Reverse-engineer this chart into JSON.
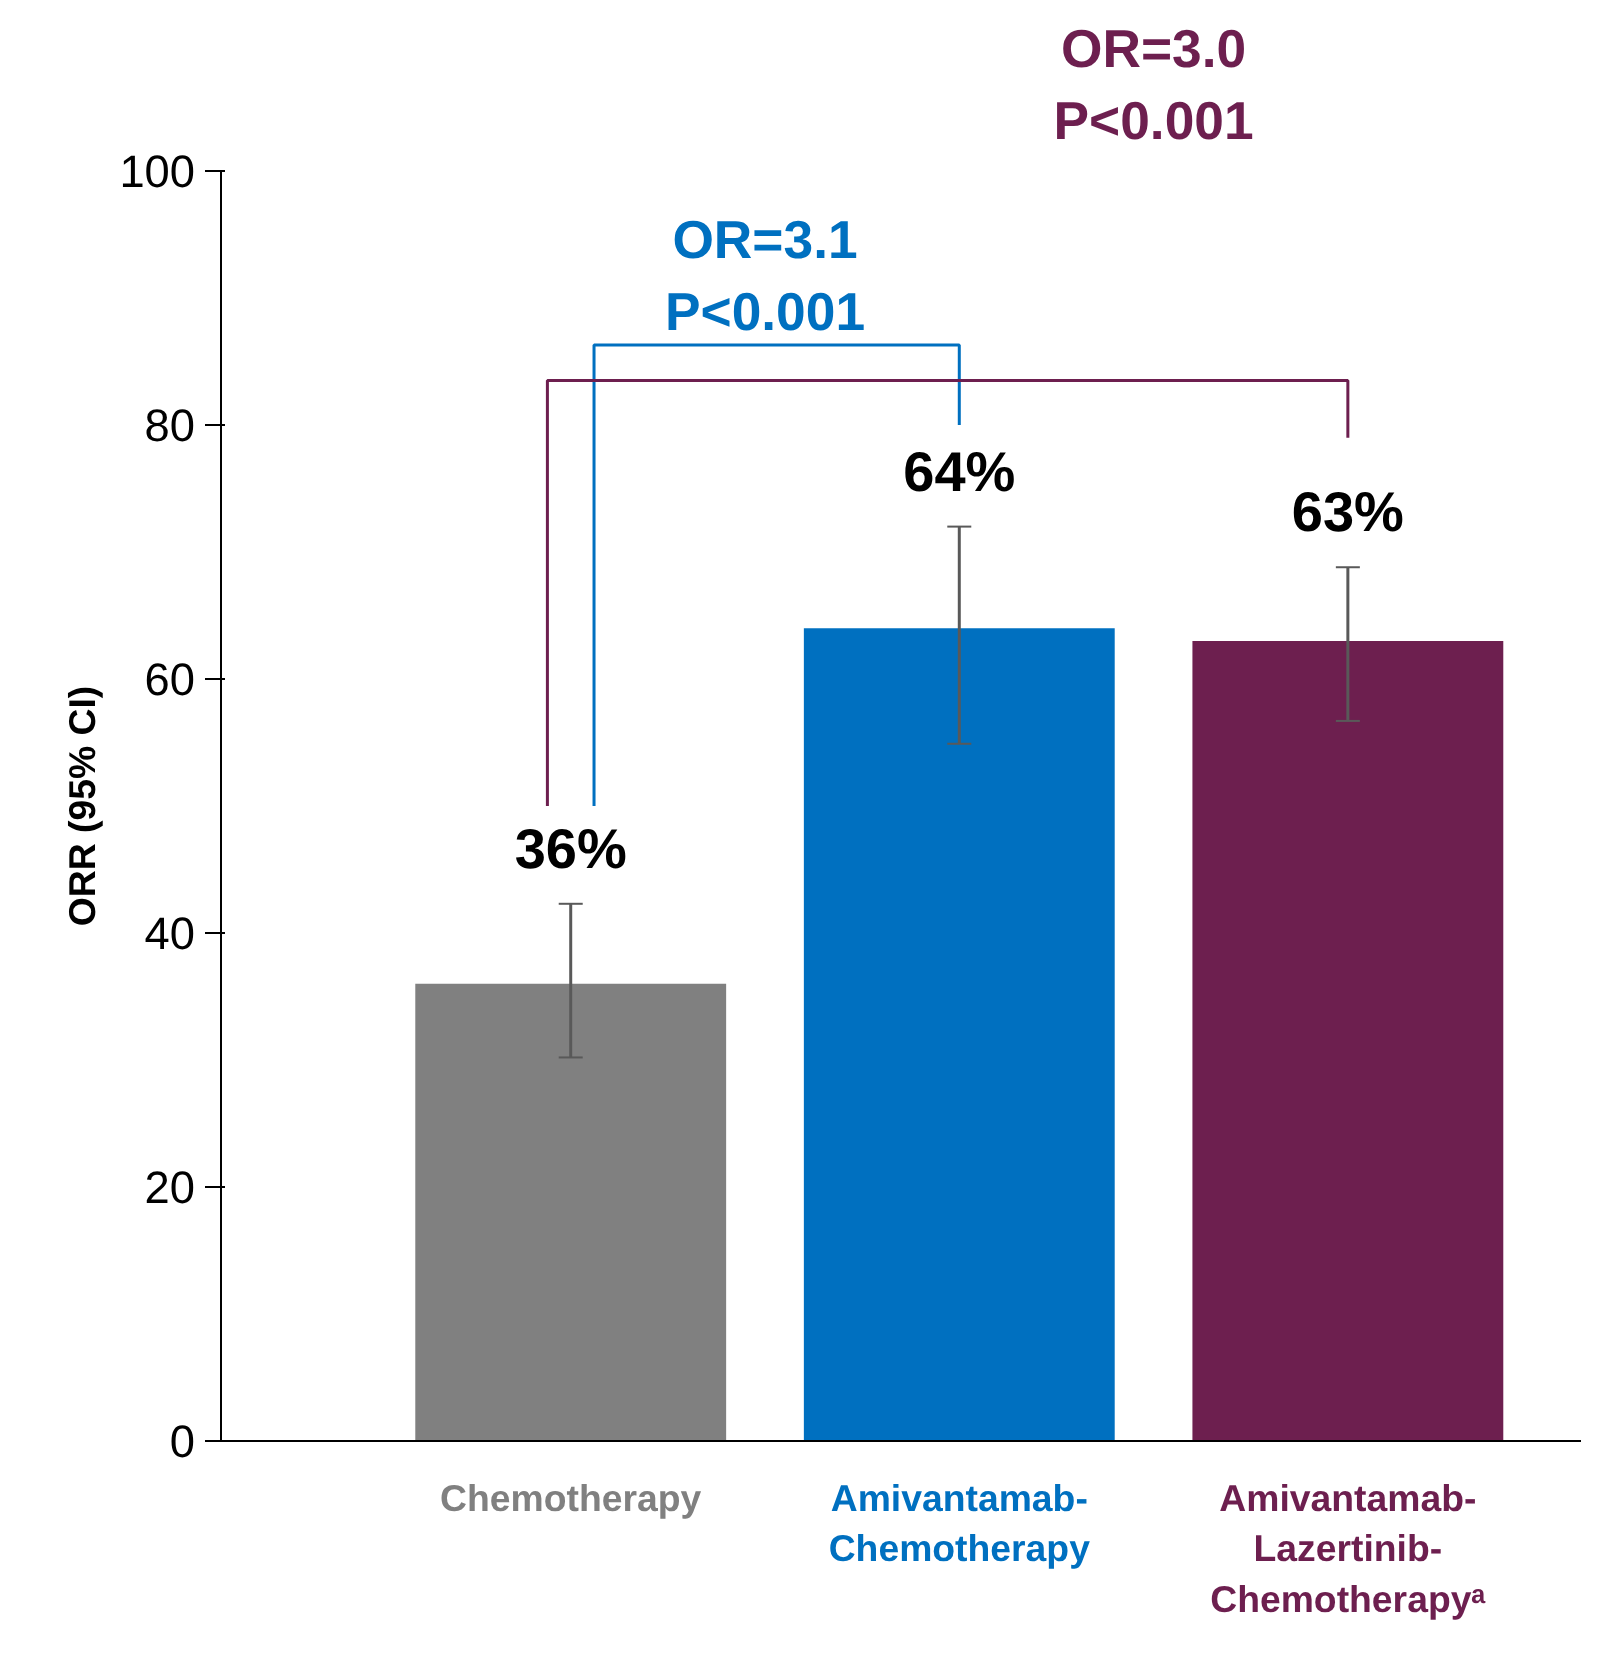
{
  "chart_data": {
    "type": "bar",
    "ylabel": "ORR (95% CI)",
    "categories": [
      "Chemotherapy",
      "Amivantamab-\nChemotherapy",
      "Amivantamab-\nLazertinib-\nChemotherapyᵃ"
    ],
    "values": [
      36,
      64,
      63
    ],
    "colors": [
      "#808080",
      "#0070c0",
      "#6d1f4f"
    ],
    "errors": [
      [
        30.2,
        42.3
      ],
      [
        54.9,
        72.0
      ],
      [
        56.7,
        68.8
      ]
    ],
    "value_labels": [
      "36%",
      "64%",
      "63%"
    ],
    "annotations": [
      "OR=3.1\nP<0.001",
      "OR=3.0\nP<0.001"
    ],
    "ylim": [
      0,
      100
    ],
    "yticks": [
      0,
      20,
      40,
      60,
      80,
      100
    ],
    "grid": false
  }
}
